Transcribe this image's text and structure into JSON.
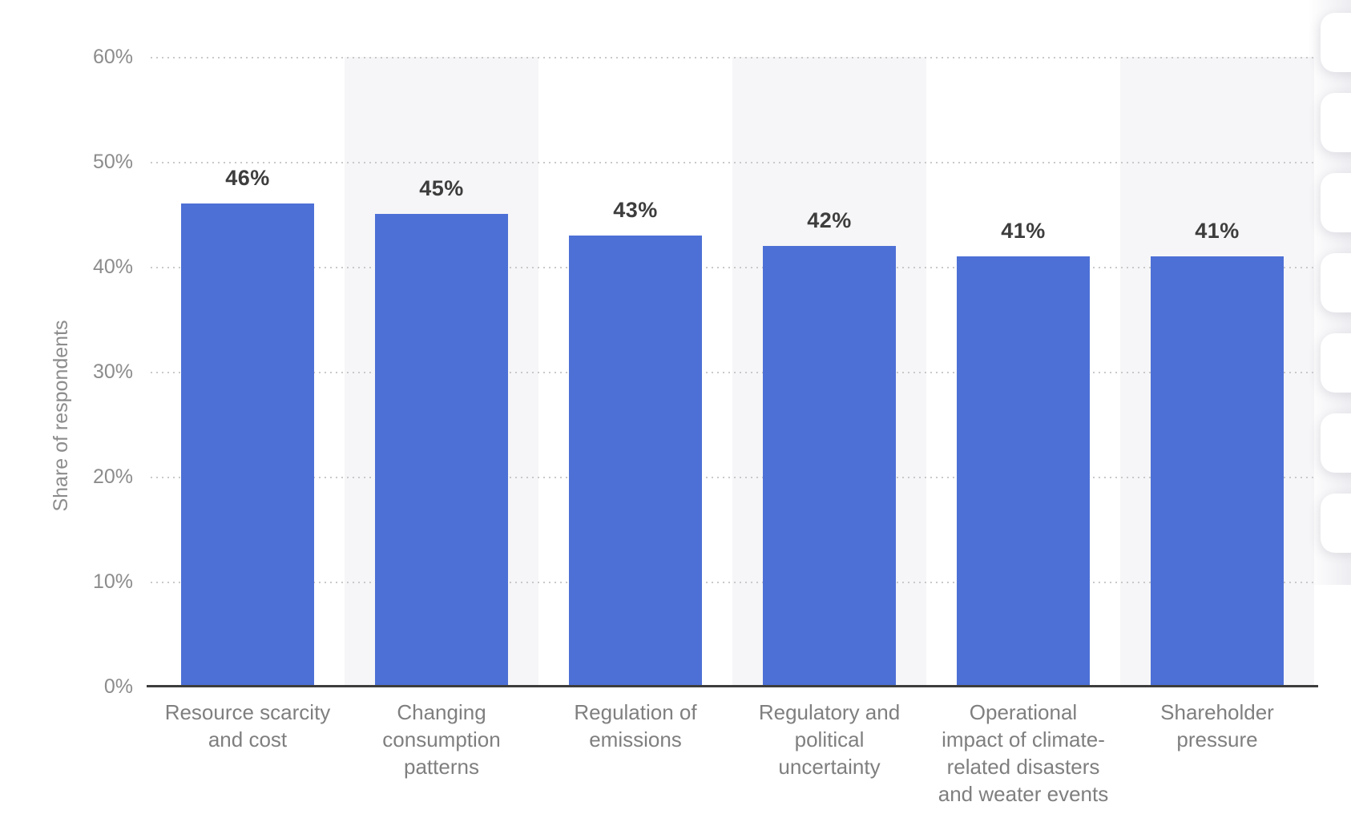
{
  "chart_data": {
    "type": "bar",
    "title": "",
    "categories": [
      "Resource scarcity and cost",
      "Changing consumption patterns",
      "Regulation of emissions",
      "Regulatory and political uncertainty",
      "Operational impact of climate-related disasters and weater events",
      "Shareholder pressure"
    ],
    "values": [
      46,
      45,
      43,
      42,
      41,
      41
    ],
    "value_labels": [
      "46%",
      "45%",
      "43%",
      "42%",
      "41%",
      "41%"
    ],
    "xlabel": "",
    "ylabel": "Share of respondents",
    "ylim": [
      0,
      60
    ],
    "y_ticks": [
      "60%",
      "50%",
      "40%",
      "30%",
      "20%",
      "10%",
      "0%"
    ],
    "grid": "horizontal dotted gridlines at each 10% step",
    "legend": "none",
    "bar_color": "#4d70d6",
    "column_stripe_color": "#f6f6f8",
    "axis_text_color": "#8c8c8c",
    "value_label_color": "#3d3d3d"
  },
  "right_edge_toolbar": {
    "description": "vertical stack of white rounded buttons cut off at the right screen edge",
    "button_count": 7
  }
}
